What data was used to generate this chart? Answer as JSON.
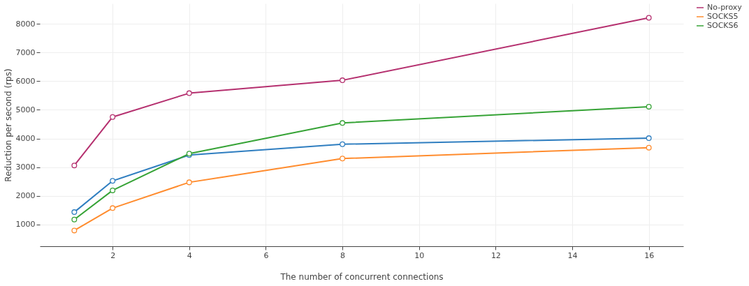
{
  "chart_data": {
    "type": "line",
    "xlabel": "The number of concurrent connections",
    "ylabel": "Reduction per second (rps)",
    "x": [
      1,
      2,
      4,
      8,
      16
    ],
    "series": [
      {
        "name": "No-proxy",
        "color": "#b5306f",
        "values": [
          3060,
          4750,
          5580,
          6030,
          8210
        ]
      },
      {
        "color": "#2f7ec0",
        "values": [
          1430,
          2520,
          3420,
          3800,
          4010
        ]
      },
      {
        "name": "SOCKS5",
        "color": "#ff8c2e",
        "values": [
          790,
          1570,
          2470,
          3300,
          3680
        ]
      },
      {
        "name": "SOCKS6",
        "color": "#36a336",
        "values": [
          1170,
          2190,
          3470,
          4540,
          5110
        ]
      }
    ],
    "xlim": [
      0.1,
      16.9
    ],
    "ylim": [
      240,
      8710
    ],
    "xticks": [
      2,
      4,
      6,
      8,
      10,
      12,
      14,
      16
    ],
    "yticks": [
      1000,
      2000,
      3000,
      4000,
      5000,
      6000,
      7000,
      8000
    ],
    "grid": true,
    "legend": "top right",
    "marker": "circle",
    "line_style": "solid"
  }
}
